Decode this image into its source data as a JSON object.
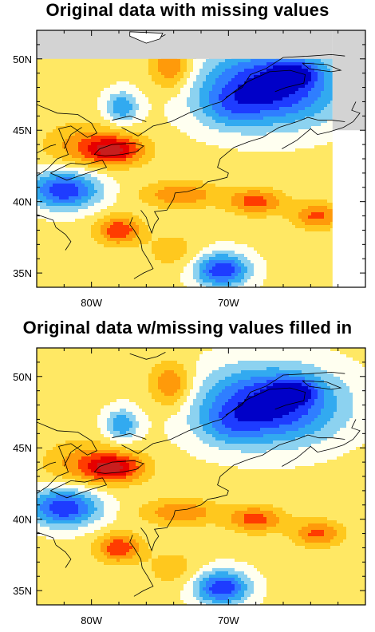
{
  "panels": [
    {
      "title": "Original data with missing values",
      "has_missing": true,
      "lat_ticks": [
        "50N",
        "45N",
        "40N",
        "35N"
      ],
      "lon_ticks": [
        "80W",
        "70W"
      ]
    },
    {
      "title": "Original data w/missing values filled in",
      "has_missing": false,
      "lat_ticks": [
        "50N",
        "45N",
        "40N",
        "35N"
      ],
      "lon_ticks": [
        "80W",
        "70W"
      ]
    }
  ],
  "map": {
    "lon_range": [
      -84,
      -60
    ],
    "lat_range": [
      34,
      52
    ],
    "missing_color": "#d3d3d3",
    "colormap": [
      "#0000c8",
      "#1e3cff",
      "#2f7eff",
      "#32aaf0",
      "#8cd2f0",
      "#fffff0",
      "#ffe864",
      "#ffc81e",
      "#ff9a0a",
      "#ff3c00",
      "#e60000",
      "#c81e1e",
      "#ffc8c8"
    ]
  }
}
